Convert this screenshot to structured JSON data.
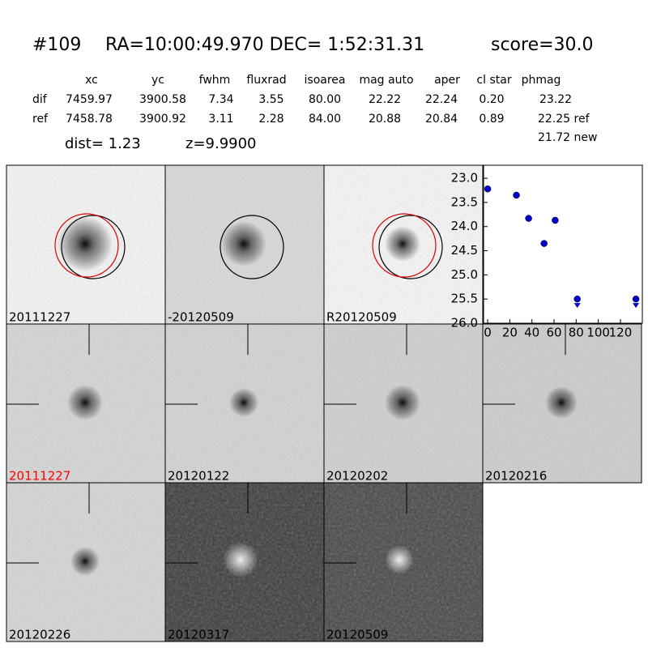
{
  "header": {
    "id": "#109",
    "coords": "RA=10:00:49.970 DEC= 1:52:31.31",
    "score": "score=30.0"
  },
  "table": {
    "columns": [
      "xc",
      "yc",
      "fwhm",
      "fluxrad",
      "isoarea",
      "mag auto",
      "aper",
      "cl star",
      "phmag"
    ],
    "rows": [
      [
        "dif",
        "7459.97",
        "3900.58",
        "7.34",
        "3.55",
        "80.00",
        "22.22",
        "22.24",
        "0.20",
        "23.22"
      ],
      [
        "ref",
        "7458.78",
        "3900.92",
        "3.11",
        "2.28",
        "84.00",
        "20.88",
        "20.84",
        "0.89",
        "22.25 ref"
      ]
    ],
    "extra": "21.72 new"
  },
  "dist": "dist=  1.23",
  "z": "z=9.9900",
  "panels": [
    "20111227",
    "-20120509",
    "R20120509",
    "20111227",
    "20120122",
    "20120202",
    "20120216",
    "20120226",
    "20120317",
    "20120509"
  ],
  "chart_data": {
    "type": "scatter",
    "color": "#0000cc",
    "x": [
      0,
      26,
      37,
      51,
      61,
      81,
      134
    ],
    "values": [
      23.22,
      23.35,
      23.83,
      24.35,
      23.87,
      25.5,
      25.5
    ],
    "upper_limit": [
      false,
      false,
      false,
      false,
      false,
      true,
      true
    ],
    "xlim": [
      -3.7,
      139.8
    ],
    "xticks": [
      0,
      20,
      40,
      60,
      80,
      100,
      120
    ],
    "ylim": [
      26.0,
      22.73
    ],
    "yticks": [
      {
        "value": 23.0,
        "label": "23.0"
      },
      {
        "value": 23.5,
        "label": "23.5"
      },
      {
        "value": 24.0,
        "label": "24.0"
      },
      {
        "value": 24.5,
        "label": "24.5"
      },
      {
        "value": 25.0,
        "label": "25.0"
      },
      {
        "value": 25.5,
        "label": "25.5"
      },
      {
        "value": 26.0,
        "label": "26.0"
      }
    ]
  }
}
